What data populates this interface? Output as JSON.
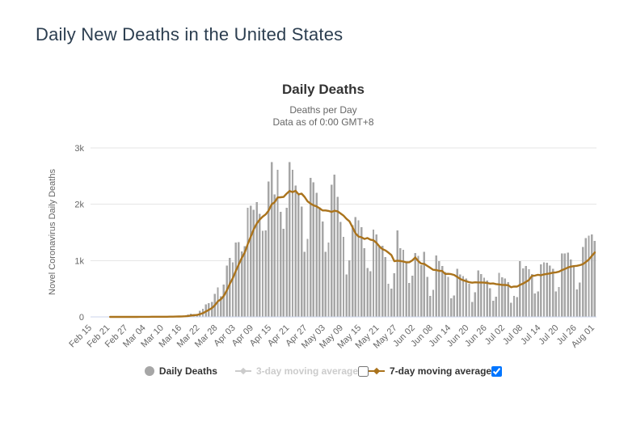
{
  "page": {
    "title": "Daily New Deaths in the United States"
  },
  "chart": {
    "title": "Daily Deaths",
    "subtitle_line1": "Deaths per Day",
    "subtitle_line2": "Data as of 0:00 GMT+8",
    "y_axis_title": "Novel Coronavirus Daily Deaths"
  },
  "legend": {
    "items": [
      {
        "label": "Daily Deaths",
        "marker": "circle",
        "color": "#a6a6a6",
        "enabled": true,
        "checkbox": null
      },
      {
        "label": "3-day moving average",
        "marker": "diamond-line",
        "color": "#cccccc",
        "enabled": false,
        "checkbox": "unchecked"
      },
      {
        "label": "7-day moving average",
        "marker": "diamond-line",
        "color": "#aa731c",
        "enabled": true,
        "checkbox": "checked"
      }
    ]
  },
  "colors": {
    "page_title": "#2c3e50",
    "chart_title": "#333333",
    "subtitle": "#666666",
    "axis_text": "#666666",
    "grid_line": "#e6e6e6",
    "axis_line": "#ccd6eb",
    "bar": "#a6a6a6",
    "ma7_line": "#aa731c",
    "legend_disabled": "#cccccc",
    "legend_enabled": "#333333"
  },
  "chart_data": {
    "type": "bar",
    "title": "Daily Deaths",
    "subtitle": "Deaths per Day — Data as of 0:00 GMT+8",
    "xlabel": "",
    "ylabel": "Novel Coronavirus Daily Deaths",
    "ylim": [
      0,
      3000
    ],
    "grid": true,
    "legend_position": "bottom",
    "start_date": "Feb 15",
    "end_date": "Aug 01",
    "x_tick_interval_days": 6,
    "x_tick_labels": [
      "Feb 15",
      "Feb 21",
      "Feb 27",
      "Mar 04",
      "Mar 10",
      "Mar 16",
      "Mar 22",
      "Mar 28",
      "Apr 03",
      "Apr 09",
      "Apr 15",
      "Apr 21",
      "Apr 27",
      "May 03",
      "May 09",
      "May 15",
      "May 21",
      "May 27",
      "Jun 02",
      "Jun 08",
      "Jun 14",
      "Jun 20",
      "Jun 26",
      "Jul 02",
      "Jul 08",
      "Jul 14",
      "Jul 20",
      "Jul 26",
      "Aug 01"
    ],
    "y_ticks": [
      {
        "label": "0",
        "value": 0
      },
      {
        "label": "1k",
        "value": 1000
      },
      {
        "label": "2k",
        "value": 2000
      },
      {
        "label": "3k",
        "value": 3000
      }
    ],
    "series": [
      {
        "name": "Daily Deaths",
        "type": "bar",
        "color": "#a6a6a6",
        "visible": true,
        "values": [
          0,
          0,
          0,
          0,
          0,
          0,
          0,
          0,
          0,
          0,
          0,
          0,
          0,
          0,
          1,
          1,
          5,
          2,
          3,
          1,
          3,
          2,
          3,
          4,
          4,
          8,
          3,
          9,
          10,
          11,
          18,
          23,
          41,
          57,
          49,
          46,
          111,
          140,
          225,
          247,
          268,
          411,
          525,
          363,
          573,
          912,
          1049,
          968,
          1321,
          1331,
          1165,
          1255,
          1940,
          1973,
          1900,
          2035,
          1830,
          1528,
          1535,
          2407,
          2752,
          2174,
          2611,
          1867,
          1561,
          1939,
          2748,
          2613,
          2333,
          2175,
          1957,
          1154,
          1384,
          2470,
          2390,
          2201,
          1945,
          1691,
          1154,
          1324,
          2350,
          2528,
          2129,
          1687,
          1422,
          750,
          1008,
          1630,
          1772,
          1715,
          1595,
          1218,
          865,
          808,
          1552,
          1461,
          1263,
          1260,
          1063,
          592,
          505,
          774,
          1535,
          1223,
          1193,
          960,
          605,
          730,
          1134,
          1083,
          921,
          1155,
          709,
          373,
          482,
          1093,
          993,
          902,
          796,
          714,
          331,
          382,
          852,
          757,
          722,
          684,
          586,
          267,
          437,
          824,
          763,
          697,
          644,
          512,
          287,
          356,
          781,
          706,
          680,
          620,
          254,
          376,
          351,
          993,
          862,
          902,
          849,
          762,
          419,
          450,
          935,
          971,
          963,
          908,
          852,
          454,
          530,
          1126,
          1125,
          1140,
          1019,
          916,
          491,
          611,
          1244,
          1403,
          1442,
          1465,
          1350
        ]
      },
      {
        "name": "3-day moving average",
        "type": "line",
        "color": "#cccccc",
        "visible": false
      },
      {
        "name": "7-day moving average",
        "type": "line",
        "color": "#aa731c",
        "visible": true,
        "derived": "7-day trailing moving average of Daily Deaths values"
      }
    ]
  }
}
